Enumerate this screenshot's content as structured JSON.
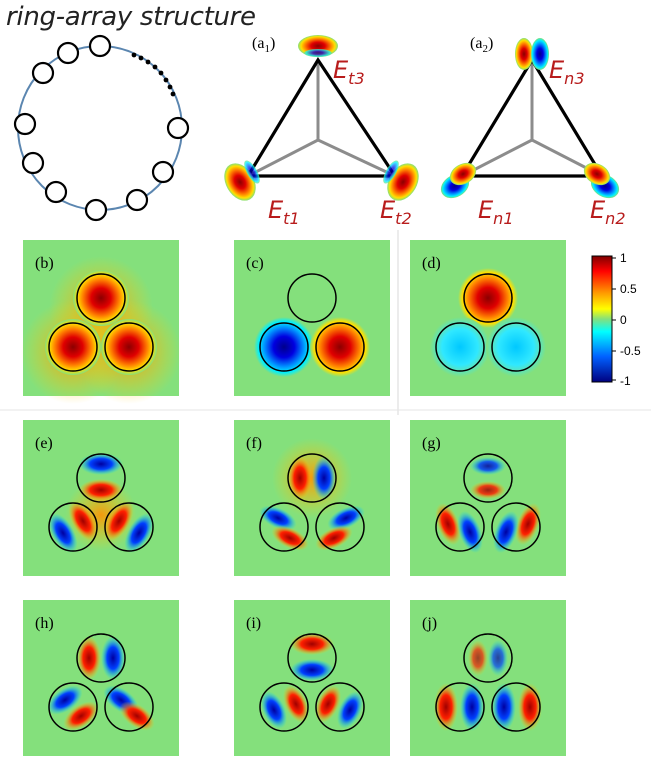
{
  "title": "ring-array structure",
  "triangle_a1": {
    "label": "(a",
    "label_sub": "1",
    "label_close": ")",
    "top": {
      "base": "E",
      "sub": "t3"
    },
    "left": {
      "base": "E",
      "sub": "t1"
    },
    "right": {
      "base": "E",
      "sub": "t2"
    }
  },
  "triangle_a2": {
    "label": "(a",
    "label_sub": "2",
    "label_close": ")",
    "top": {
      "base": "E",
      "sub": "n3"
    },
    "left": {
      "base": "E",
      "sub": "n1"
    },
    "right": {
      "base": "E",
      "sub": "n2"
    }
  },
  "panels": [
    {
      "label": "(b)"
    },
    {
      "label": "(c)"
    },
    {
      "label": "(d)"
    },
    {
      "label": "(e)"
    },
    {
      "label": "(f)"
    },
    {
      "label": "(g)"
    },
    {
      "label": "(h)"
    },
    {
      "label": "(i)"
    },
    {
      "label": "(j)"
    }
  ],
  "colorbar": {
    "ticks": [
      "1",
      "0.5",
      "0",
      "-0.5",
      "-1"
    ],
    "colors": [
      "#7f0000",
      "#ff0000",
      "#ffff00",
      "#80ff80",
      "#00ffff",
      "#0000ff",
      "#00007f"
    ]
  },
  "colors": {
    "background_field": "#84e07c",
    "ring_line": "#5b86b0",
    "triangle_edge": "#000000",
    "triangle_center_lines": "#8c8c8c",
    "label_red": "#b81c1c"
  }
}
